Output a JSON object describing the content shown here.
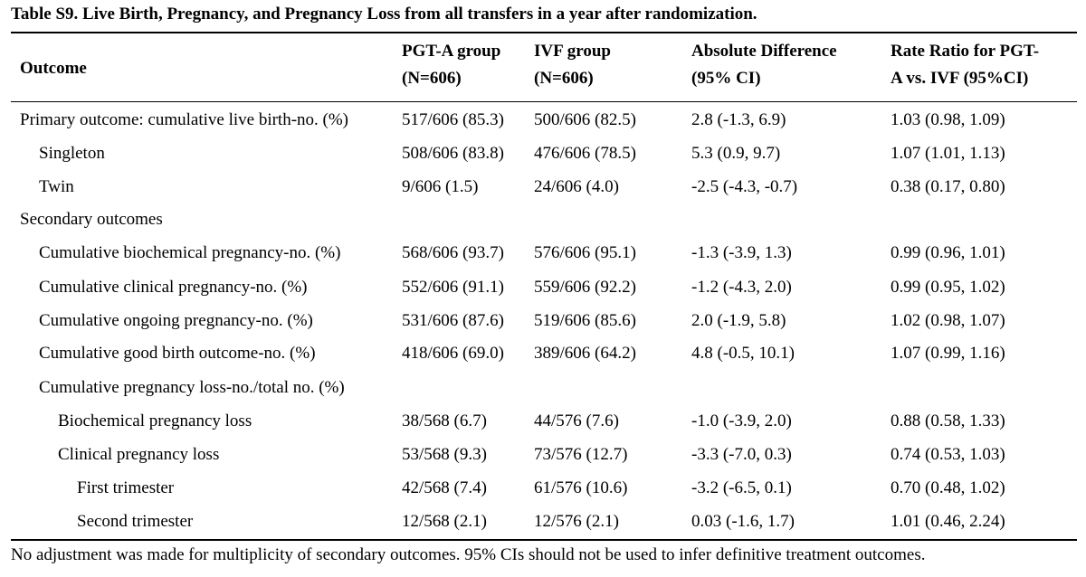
{
  "title": "Table S9. Live Birth, Pregnancy, and Pregnancy Loss from all transfers in a year after randomization.",
  "header": {
    "outcome": "Outcome",
    "pgta_line1": "PGT-A group",
    "pgta_line2": "(N=606)",
    "ivf_line1": "IVF group",
    "ivf_line2": "(N=606)",
    "diff_line1": "Absolute Difference",
    "diff_line2": "(95% CI)",
    "rr_line1": "Rate Ratio for PGT-",
    "rr_line2": "A vs. IVF (95%CI)"
  },
  "rows": [
    {
      "label": "Primary outcome: cumulative live birth-no. (%)",
      "pgta": "517/606 (85.3)",
      "ivf": "500/606 (82.5)",
      "diff": "2.8 (-1.3, 6.9)",
      "rr": "1.03 (0.98, 1.09)"
    },
    {
      "label": "Singleton",
      "pgta": "508/606 (83.8)",
      "ivf": "476/606 (78.5)",
      "diff": "5.3 (0.9, 9.7)",
      "rr": "1.07 (1.01, 1.13)"
    },
    {
      "label": "Twin",
      "pgta": "9/606 (1.5)",
      "ivf": "24/606 (4.0)",
      "diff": "-2.5 (-4.3, -0.7)",
      "rr": "0.38 (0.17, 0.80)"
    },
    {
      "label": "Secondary outcomes",
      "pgta": "",
      "ivf": "",
      "diff": "",
      "rr": ""
    },
    {
      "label": "Cumulative biochemical pregnancy-no. (%)",
      "pgta": "568/606 (93.7)",
      "ivf": "576/606 (95.1)",
      "diff": "-1.3 (-3.9, 1.3)",
      "rr": "0.99 (0.96, 1.01)"
    },
    {
      "label": "Cumulative clinical pregnancy-no. (%)",
      "pgta": "552/606 (91.1)",
      "ivf": "559/606 (92.2)",
      "diff": "-1.2 (-4.3, 2.0)",
      "rr": "0.99 (0.95, 1.02)"
    },
    {
      "label": "Cumulative ongoing pregnancy-no. (%)",
      "pgta": "531/606 (87.6)",
      "ivf": "519/606 (85.6)",
      "diff": "2.0 (-1.9, 5.8)",
      "rr": "1.02 (0.98, 1.07)"
    },
    {
      "label": "Cumulative good birth outcome-no. (%)",
      "pgta": "418/606 (69.0)",
      "ivf": "389/606 (64.2)",
      "diff": "4.8 (-0.5, 10.1)",
      "rr": "1.07 (0.99, 1.16)"
    },
    {
      "label": "Cumulative pregnancy loss-no./total no. (%)",
      "pgta": "",
      "ivf": "",
      "diff": "",
      "rr": ""
    },
    {
      "label": "Biochemical pregnancy loss",
      "pgta": "38/568 (6.7)",
      "ivf": "44/576 (7.6)",
      "diff": "-1.0 (-3.9, 2.0)",
      "rr": "0.88 (0.58, 1.33)"
    },
    {
      "label": "Clinical pregnancy loss",
      "pgta": "53/568 (9.3)",
      "ivf": "73/576 (12.7)",
      "diff": "-3.3 (-7.0, 0.3)",
      "rr": "0.74 (0.53, 1.03)"
    },
    {
      "label": "First trimester",
      "pgta": "42/568 (7.4)",
      "ivf": "61/576 (10.6)",
      "diff": "-3.2 (-6.5, 0.1)",
      "rr": "0.70 (0.48, 1.02)"
    },
    {
      "label": "Second trimester",
      "pgta": "12/568 (2.1)",
      "ivf": "12/576 (2.1)",
      "diff": "0.03 (-1.6, 1.7)",
      "rr": "1.01 (0.46, 2.24)"
    }
  ],
  "footnote": "No adjustment was made for multiplicity of secondary outcomes. 95% CIs should not be used to infer definitive treatment outcomes."
}
